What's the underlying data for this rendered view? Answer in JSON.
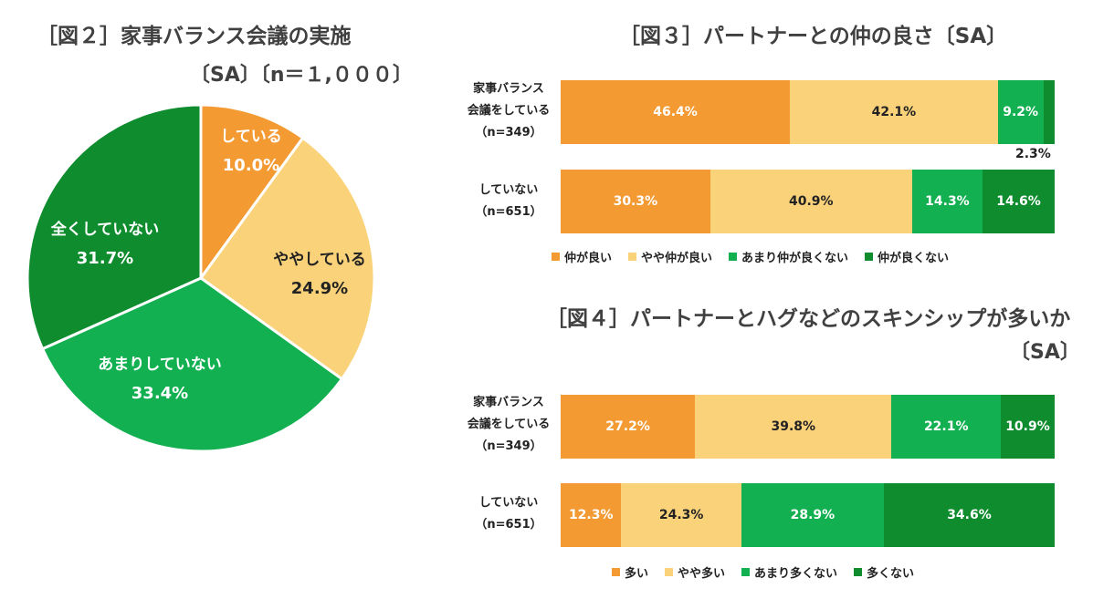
{
  "colors": {
    "orange": "#F39A33",
    "light_yellow": "#FAD27A",
    "green": "#12B050",
    "dark_green": "#0E8C2E"
  },
  "fig2": {
    "title": "［図２］家事バランス会議の実施",
    "subtitle": "〔SA〕〔n＝１,０００〕"
  },
  "fig3": {
    "title": "［図３］パートナーとの仲の良さ〔SA〕",
    "rows": [
      {
        "label_lines": [
          "家事バランス",
          "会議をしている",
          "（n=349）"
        ]
      },
      {
        "label_lines": [
          "していない",
          "（n=651）"
        ]
      }
    ],
    "outside_label": "2.3%"
  },
  "fig4": {
    "title": "［図４］パートナーとハグなどのスキンシップが多いか",
    "subtitle": "〔SA〕",
    "rows": [
      {
        "label_lines": [
          "家事バランス",
          "会議をしている",
          "（n=349）"
        ]
      },
      {
        "label_lines": [
          "していない",
          "（n=651）"
        ]
      }
    ]
  },
  "chart_data": [
    {
      "type": "pie",
      "title": "［図２］家事バランス会議の実施",
      "subtitle": "〔SA〕〔n＝１,０００〕",
      "slices": [
        {
          "label": "している",
          "value": 10.0,
          "display": "10.0%",
          "color": "#F39A33"
        },
        {
          "label": "ややしている",
          "value": 24.9,
          "display": "24.9%",
          "color": "#FAD27A"
        },
        {
          "label": "あまりしていない",
          "value": 33.4,
          "display": "33.4%",
          "color": "#12B050"
        },
        {
          "label": "全くしていない",
          "value": 31.7,
          "display": "31.7%",
          "color": "#0E8C2E"
        }
      ]
    },
    {
      "type": "bar",
      "orientation": "horizontal-stacked-100",
      "title": "［図３］パートナーとの仲の良さ〔SA〕",
      "categories": [
        "家事バランス会議をしている（n=349）",
        "していない（n=651）"
      ],
      "series": [
        {
          "name": "仲が良い",
          "color": "#F39A33",
          "values": [
            46.4,
            30.3
          ],
          "labels": [
            "46.4%",
            "30.3%"
          ]
        },
        {
          "name": "やや仲が良い",
          "color": "#FAD27A",
          "values": [
            42.1,
            40.9
          ],
          "labels": [
            "42.1%",
            "40.9%"
          ]
        },
        {
          "name": "あまり仲が良くない",
          "color": "#12B050",
          "values": [
            9.2,
            14.3
          ],
          "labels": [
            "9.2%",
            "14.3%"
          ]
        },
        {
          "name": "仲が良くない",
          "color": "#0E8C2E",
          "values": [
            2.3,
            14.6
          ],
          "labels": [
            "",
            "14.6%"
          ]
        }
      ]
    },
    {
      "type": "bar",
      "orientation": "horizontal-stacked-100",
      "title": "［図４］パートナーとハグなどのスキンシップが多いか〔SA〕",
      "categories": [
        "家事バランス会議をしている（n=349）",
        "していない（n=651）"
      ],
      "series": [
        {
          "name": "多い",
          "color": "#F39A33",
          "values": [
            27.2,
            12.3
          ],
          "labels": [
            "27.2%",
            "12.3%"
          ]
        },
        {
          "name": "やや多い",
          "color": "#FAD27A",
          "values": [
            39.8,
            24.3
          ],
          "labels": [
            "39.8%",
            "24.3%"
          ]
        },
        {
          "name": "あまり多くない",
          "color": "#12B050",
          "values": [
            22.1,
            28.9
          ],
          "labels": [
            "22.1%",
            "28.9%"
          ]
        },
        {
          "name": "多くない",
          "color": "#0E8C2E",
          "values": [
            10.9,
            34.6
          ],
          "labels": [
            "10.9%",
            "34.6%"
          ]
        }
      ]
    }
  ]
}
